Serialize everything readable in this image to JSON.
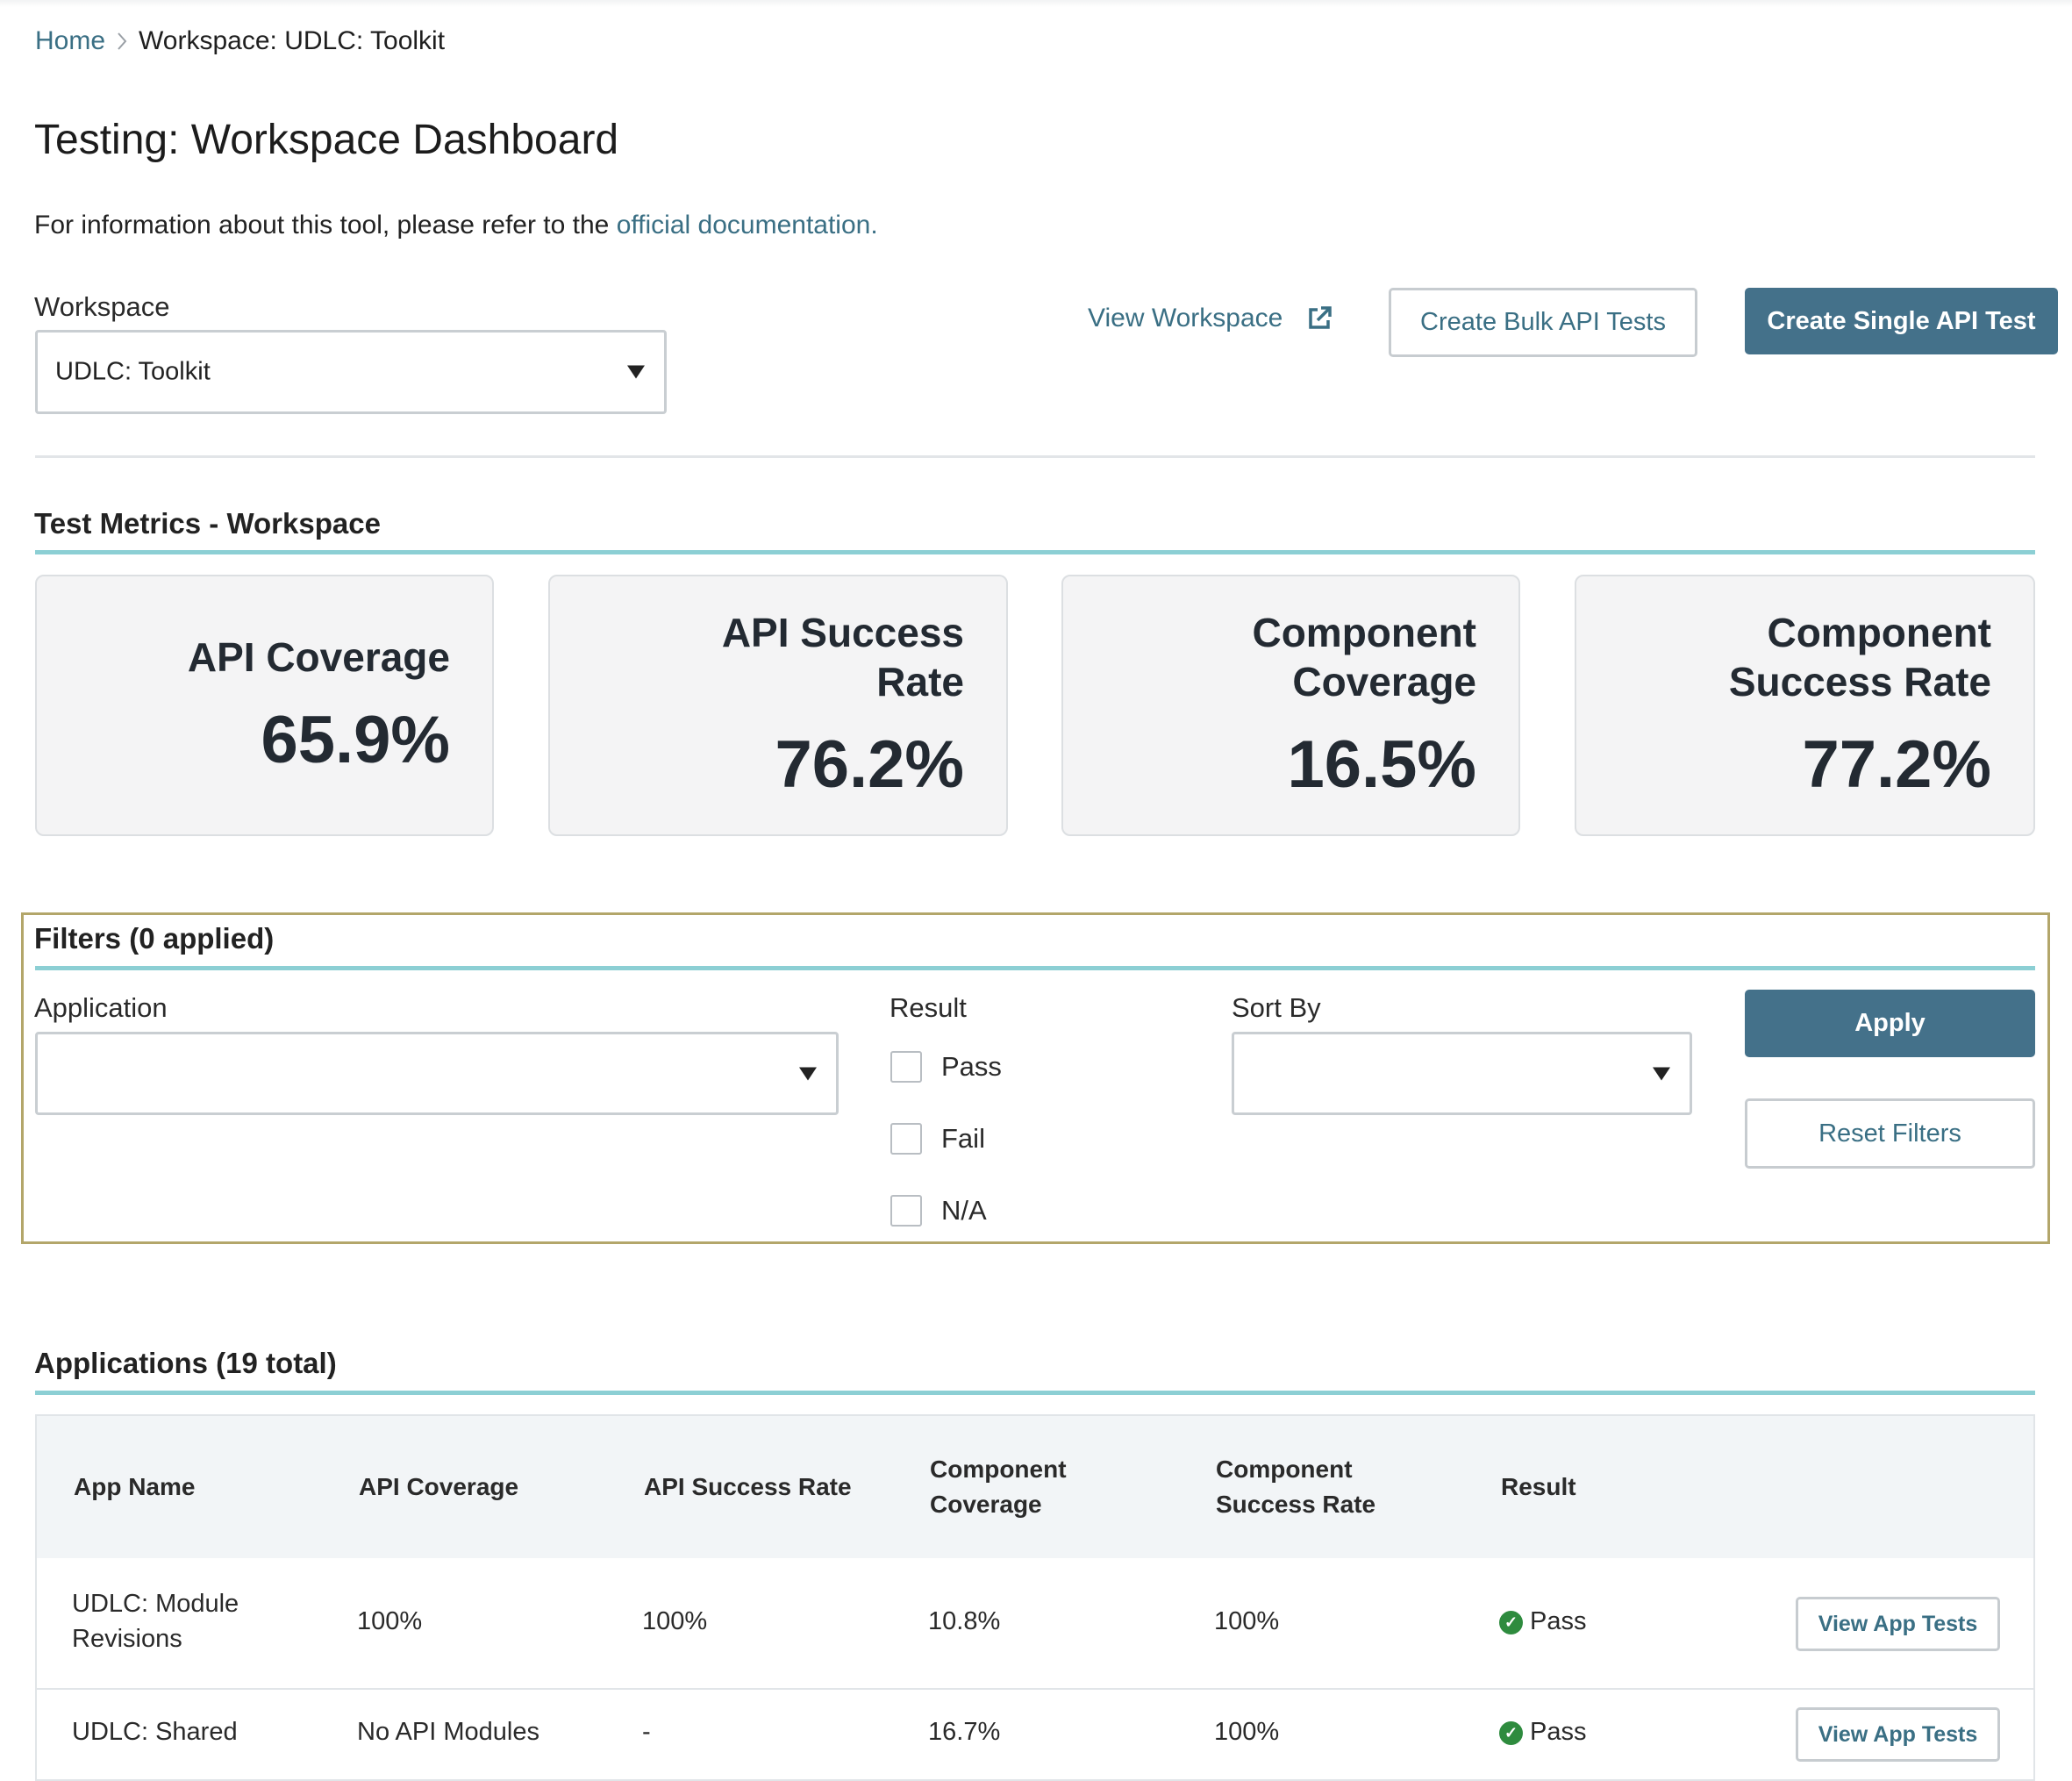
{
  "breadcrumb": {
    "home": "Home",
    "current": "Workspace: UDLC: Toolkit"
  },
  "page_title": "Testing: Workspace Dashboard",
  "info": {
    "text": "For information about this tool, please refer to the ",
    "link": "official documentation."
  },
  "workspace": {
    "label": "Workspace",
    "selected": "UDLC: Toolkit"
  },
  "actions": {
    "view_workspace": "View Workspace",
    "bulk": "Create Bulk API Tests",
    "single": "Create Single API Test"
  },
  "metrics": {
    "title": "Test Metrics - Workspace",
    "cards": [
      {
        "line1": "API Coverage",
        "line2": "",
        "value": "65.9%"
      },
      {
        "line1": "API Success",
        "line2": "Rate",
        "value": "76.2%"
      },
      {
        "line1": "Component",
        "line2": "Coverage",
        "value": "16.5%"
      },
      {
        "line1": "Component",
        "line2": "Success Rate",
        "value": "77.2%"
      }
    ]
  },
  "filters": {
    "title": "Filters (0 applied)",
    "application_label": "Application",
    "application_value": "",
    "result_label": "Result",
    "result_options": [
      "Pass",
      "Fail",
      "N/A"
    ],
    "sort_label": "Sort By",
    "sort_value": "",
    "apply": "Apply",
    "reset": "Reset Filters"
  },
  "applications": {
    "title": "Applications (19 total)",
    "columns": [
      {
        "line1": "App Name",
        "line2": ""
      },
      {
        "line1": "API Coverage",
        "line2": ""
      },
      {
        "line1": "API Success Rate",
        "line2": ""
      },
      {
        "line1": "Component",
        "line2": "Coverage"
      },
      {
        "line1": "Component",
        "line2": "Success Rate"
      },
      {
        "line1": "Result",
        "line2": ""
      }
    ],
    "rows": [
      {
        "name1": "UDLC: Module",
        "name2": "Revisions",
        "api_coverage": "100%",
        "api_success": "100%",
        "comp_coverage": "10.8%",
        "comp_success": "100%",
        "result": "Pass",
        "action": "View App Tests"
      },
      {
        "name1": "UDLC: Shared",
        "name2": "",
        "api_coverage": "No API Modules",
        "api_success": "-",
        "comp_coverage": "16.7%",
        "comp_success": "100%",
        "result": "Pass",
        "action": "View App Tests"
      }
    ]
  },
  "colors": {
    "accent": "#44718a",
    "link": "#3a6f84",
    "teal_rule": "#8ccfd4",
    "pass": "#2e8b3e",
    "filter_border": "#b3a66a"
  }
}
